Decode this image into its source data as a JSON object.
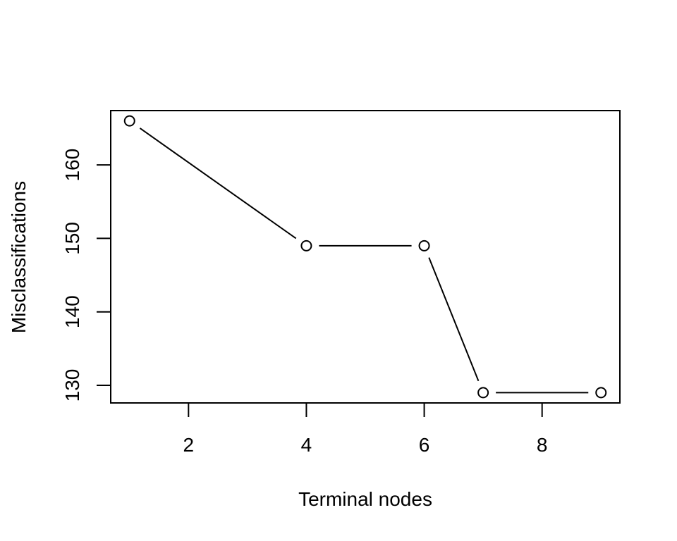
{
  "chart_data": {
    "type": "line",
    "title": "",
    "xlabel": "Terminal nodes",
    "ylabel": "Misclassifications",
    "x": [
      1,
      4,
      6,
      7,
      9
    ],
    "y": [
      166,
      149,
      149,
      129,
      129
    ],
    "xlim": [
      0.68,
      9.32
    ],
    "ylim": [
      127.6,
      167.4
    ],
    "xticks": [
      2,
      4,
      6,
      8
    ],
    "yticks": [
      130,
      140,
      150,
      160
    ],
    "grid": false,
    "legend": "none",
    "line_color": "#000000",
    "marker": "open-circle"
  }
}
